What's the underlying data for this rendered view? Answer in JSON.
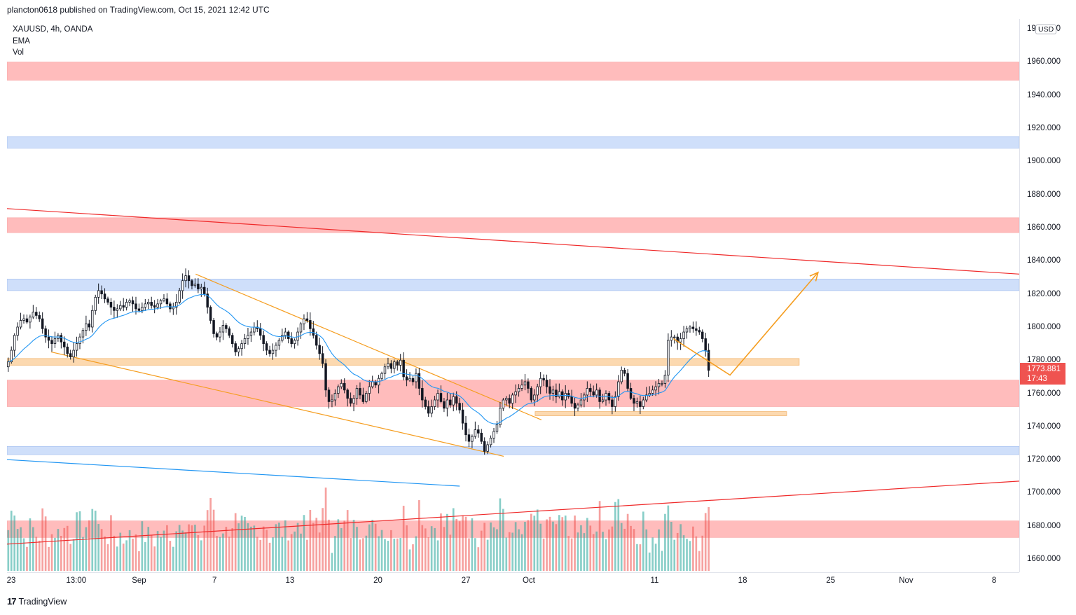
{
  "header": {
    "published_by": "plancton0618 published on TradingView.com, Oct 15, 2021 12:42 UTC"
  },
  "legend": {
    "symbol": "XAUUSD, 4h, OANDA",
    "indicator1": "EMA",
    "indicator2": "Vol"
  },
  "currency_badge": "USD",
  "last_price": {
    "price": "1773.881",
    "countdown": "17:43"
  },
  "footer": {
    "logo_glyph": "17",
    "brand": "TradingView"
  },
  "colors": {
    "up": "#26a69a",
    "down": "#ef5350",
    "ema": "#2196f3",
    "zone_red": "#ffbcbc",
    "zone_blue": "#cfdffa",
    "zone_orange": "#fcd9b0",
    "orange_line": "#f59d1f",
    "trend_red": "#ef2a2a"
  },
  "chart_data": {
    "type": "candlestick",
    "title": "XAUUSD, 4h, OANDA",
    "xlabel": "",
    "ylabel": "USD",
    "ylim": [
      1652,
      1986
    ],
    "xlim_days": [
      0,
      80.5
    ],
    "x_ticks": [
      {
        "label": "23",
        "day": 0
      },
      {
        "label": "13:00",
        "day": 5.5
      },
      {
        "label": "Sep",
        "day": 10.5
      },
      {
        "label": "7",
        "day": 16.5
      },
      {
        "label": "13",
        "day": 22.5
      },
      {
        "label": "20",
        "day": 29.5
      },
      {
        "label": "27",
        "day": 36.5
      },
      {
        "label": "Oct",
        "day": 41.5
      },
      {
        "label": "11",
        "day": 51.5
      },
      {
        "label": "18",
        "day": 58.5
      },
      {
        "label": "25",
        "day": 65.5
      },
      {
        "label": "Nov",
        "day": 71.5
      },
      {
        "label": "8",
        "day": 78.5
      }
    ],
    "y_ticks": [
      "1660.000",
      "1680.000",
      "1700.000",
      "1720.000",
      "1740.000",
      "1760.000",
      "1780.000",
      "1800.000",
      "1820.000",
      "1840.000",
      "1860.000",
      "1880.000",
      "1900.000",
      "1920.000",
      "1940.000",
      "1960.000",
      "1980.000"
    ],
    "zones": [
      {
        "color": "red",
        "from": 1949,
        "to": 1960
      },
      {
        "color": "blue",
        "from": 1908,
        "to": 1915
      },
      {
        "color": "red",
        "from": 1857,
        "to": 1866
      },
      {
        "color": "blue",
        "from": 1822,
        "to": 1829
      },
      {
        "color": "red",
        "from": 1752,
        "to": 1768
      },
      {
        "color": "blue",
        "from": 1723,
        "to": 1728
      },
      {
        "color": "red",
        "from": 1673,
        "to": 1683
      }
    ],
    "orange_zones": [
      {
        "from": 1777,
        "to": 1781,
        "day_start": 0,
        "day_end": 63
      },
      {
        "from": 1746.5,
        "to": 1749,
        "day_start": 42,
        "day_end": 62
      }
    ],
    "lines": [
      {
        "name": "long-resistance",
        "color": "red",
        "points": [
          [
            0,
            1871.5
          ],
          [
            80.5,
            1832
          ]
        ]
      },
      {
        "name": "long-support",
        "color": "red",
        "points": [
          [
            0,
            1669
          ],
          [
            80.5,
            1707
          ]
        ]
      },
      {
        "name": "blue-trend",
        "color": "blue",
        "points": [
          [
            0,
            1720
          ],
          [
            36,
            1704
          ]
        ]
      },
      {
        "name": "channel-top",
        "color": "orange",
        "points": [
          [
            15,
            1832
          ],
          [
            42.5,
            1744
          ]
        ]
      },
      {
        "name": "channel-bottom",
        "color": "orange",
        "points": [
          [
            3.5,
            1785
          ],
          [
            39.5,
            1722
          ]
        ]
      },
      {
        "name": "projection",
        "color": "orange",
        "points": [
          [
            53,
            1793
          ],
          [
            57.5,
            1771
          ],
          [
            64.5,
            1833
          ]
        ],
        "arrow": true
      }
    ],
    "series": [
      {
        "name": "XAUUSD",
        "type": "candlestick",
        "closes": [
          1779,
          1786,
          1795,
          1800,
          1804,
          1805,
          1803,
          1806,
          1809,
          1807,
          1805,
          1799,
          1794,
          1792,
          1790,
          1793,
          1795,
          1791,
          1788,
          1784,
          1782,
          1786,
          1790,
          1794,
          1798,
          1802,
          1800,
          1810,
          1818,
          1822,
          1820,
          1817,
          1815,
          1812,
          1810,
          1811,
          1813,
          1812,
          1815,
          1816,
          1814,
          1811,
          1810,
          1812,
          1814,
          1815,
          1813,
          1812,
          1814,
          1816,
          1817,
          1814,
          1811,
          1812,
          1815,
          1822,
          1828,
          1831,
          1828,
          1825,
          1826,
          1823,
          1824,
          1820,
          1812,
          1804,
          1796,
          1794,
          1797,
          1801,
          1799,
          1795,
          1790,
          1785,
          1787,
          1790,
          1793,
          1795,
          1797,
          1800,
          1799,
          1795,
          1790,
          1786,
          1784,
          1786,
          1789,
          1792,
          1795,
          1797,
          1793,
          1790,
          1792,
          1797,
          1802,
          1805,
          1804,
          1799,
          1795,
          1789,
          1784,
          1778,
          1762,
          1755,
          1756,
          1760,
          1764,
          1766,
          1762,
          1757,
          1754,
          1757,
          1763,
          1759,
          1755,
          1760,
          1764,
          1767,
          1765,
          1769,
          1772,
          1776,
          1778,
          1775,
          1779,
          1777,
          1780,
          1770,
          1768,
          1769,
          1767,
          1772,
          1763,
          1756,
          1752,
          1748,
          1752,
          1756,
          1760,
          1755,
          1751,
          1756,
          1753,
          1758,
          1754,
          1750,
          1742,
          1735,
          1731,
          1734,
          1738,
          1736,
          1731,
          1725,
          1729,
          1733,
          1737,
          1741,
          1751,
          1756,
          1757,
          1754,
          1759,
          1761,
          1763,
          1765,
          1767,
          1763,
          1756,
          1759,
          1764,
          1769,
          1768,
          1764,
          1760,
          1762,
          1758,
          1761,
          1756,
          1760,
          1758,
          1754,
          1751,
          1753,
          1756,
          1759,
          1763,
          1761,
          1759,
          1762,
          1755,
          1756,
          1760,
          1756,
          1752,
          1758,
          1767,
          1774,
          1772,
          1763,
          1757,
          1754,
          1755,
          1752,
          1756,
          1759,
          1760,
          1762,
          1764,
          1766,
          1766,
          1771,
          1792,
          1794,
          1794,
          1791,
          1793,
          1797,
          1799,
          1800,
          1799,
          1798,
          1797,
          1793,
          1786,
          1773.88
        ]
      },
      {
        "name": "EMA",
        "type": "line"
      },
      {
        "name": "Vol",
        "type": "bar"
      }
    ]
  }
}
